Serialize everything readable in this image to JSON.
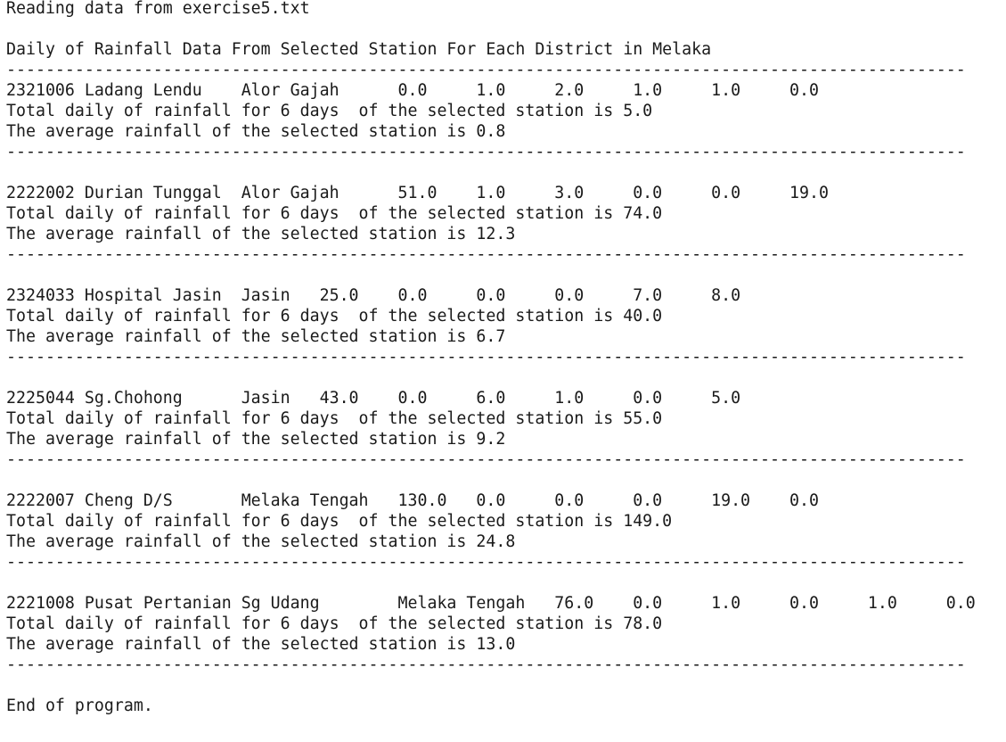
{
  "console": {
    "reading": "Reading data from exercise5.txt",
    "heading": "Daily of Rainfall Data From Selected Station For Each District in Melaka",
    "separator": "--------------------------------------------------------------------------------------------------",
    "end": "End of program."
  },
  "stations": [
    {
      "data_line": "2321006 Ladang Lendu    Alor Gajah      0.0     1.0     2.0     1.0     1.0     0.0",
      "total_line": "Total daily of rainfall for 6 days  of the selected station is 5.0",
      "average_line": "The average rainfall of the selected station is 0.8"
    },
    {
      "data_line": "2222002 Durian Tunggal  Alor Gajah      51.0    1.0     3.0     0.0     0.0     19.0",
      "total_line": "Total daily of rainfall for 6 days  of the selected station is 74.0",
      "average_line": "The average rainfall of the selected station is 12.3"
    },
    {
      "data_line": "2324033 Hospital Jasin  Jasin   25.0    0.0     0.0     0.0     7.0     8.0",
      "total_line": "Total daily of rainfall for 6 days  of the selected station is 40.0",
      "average_line": "The average rainfall of the selected station is 6.7"
    },
    {
      "data_line": "2225044 Sg.Chohong      Jasin   43.0    0.0     6.0     1.0     0.0     5.0",
      "total_line": "Total daily of rainfall for 6 days  of the selected station is 55.0",
      "average_line": "The average rainfall of the selected station is 9.2"
    },
    {
      "data_line": "2222007 Cheng D/S       Melaka Tengah   130.0   0.0     0.0     0.0     19.0    0.0",
      "total_line": "Total daily of rainfall for 6 days  of the selected station is 149.0",
      "average_line": "The average rainfall of the selected station is 24.8"
    },
    {
      "data_line": "2221008 Pusat Pertanian Sg Udang        Melaka Tengah   76.0    0.0     1.0     0.0     1.0     0.0",
      "total_line": "Total daily of rainfall for 6 days  of the selected station is 78.0",
      "average_line": "The average rainfall of the selected station is 13.0"
    }
  ]
}
